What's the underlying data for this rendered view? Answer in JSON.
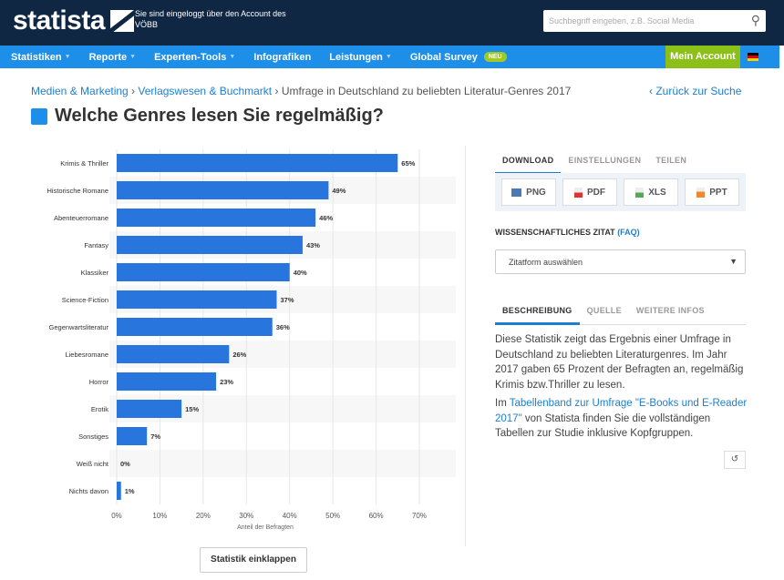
{
  "header": {
    "logo": "statista",
    "login_text": "Sie sind eingeloggt über den Account des VÖBB",
    "search_placeholder": "Suchbegriff eingeben, z.B. Social Media"
  },
  "nav": {
    "items": [
      {
        "label": "Statistiken",
        "dropdown": true
      },
      {
        "label": "Reporte",
        "dropdown": true
      },
      {
        "label": "Experten-Tools",
        "dropdown": true
      },
      {
        "label": "Infografiken",
        "dropdown": false
      },
      {
        "label": "Leistungen",
        "dropdown": true
      },
      {
        "label": "Global Survey",
        "dropdown": false
      }
    ],
    "badge": "NEU",
    "account": "Mein Account"
  },
  "breadcrumb": {
    "items": [
      "Medien & Marketing",
      "Verlagswesen & Buchmarkt"
    ],
    "current": "Umfrage in Deutschland zu beliebten Literatur-Genres 2017",
    "back": "‹ Zurück zur Suche"
  },
  "page_title": "Welche Genres lesen Sie regelmäßig?",
  "chart_data": {
    "type": "bar",
    "orientation": "horizontal",
    "categories": [
      "Krimis & Thriller",
      "Historische Romane",
      "Abenteuerromane",
      "Fantasy",
      "Klassiker",
      "Science-Fiction",
      "Gegenwartsliteratur",
      "Liebesromane",
      "Horror",
      "Erotik",
      "Sonstiges",
      "Weiß nicht",
      "Nichts davon"
    ],
    "values": [
      65,
      49,
      46,
      43,
      40,
      37,
      36,
      26,
      23,
      15,
      7,
      0,
      1
    ],
    "data_labels": [
      "65%",
      "49%",
      "46%",
      "43%",
      "40%",
      "37%",
      "36%",
      "26%",
      "23%",
      "15%",
      "7%",
      "0%",
      "1%"
    ],
    "xlabel": "Anteil der Befragten",
    "xlim": [
      0,
      70
    ],
    "xticks": [
      "0%",
      "10%",
      "20%",
      "30%",
      "40%",
      "50%",
      "60%",
      "70%"
    ],
    "bar_color": "#2876dd",
    "grid": true
  },
  "collapse_button": "Statistik einklappen",
  "download": {
    "tabs": [
      "DOWNLOAD",
      "EINSTELLUNGEN",
      "TEILEN"
    ],
    "buttons": [
      "PNG",
      "PDF",
      "XLS",
      "PPT"
    ]
  },
  "citation": {
    "label": "WISSENSCHAFTLICHES ZITAT",
    "faq": "(FAQ)",
    "select": "Zitatform auswählen"
  },
  "info": {
    "tabs": [
      "BESCHREIBUNG",
      "QUELLE",
      "WEITERE INFOS"
    ],
    "text1": "Diese Statistik zeigt das Ergebnis einer Umfrage in Deutschland zu beliebten Literaturgenres. Im Jahr 2017 gaben 65 Prozent der Befragten an, regelmäßig Krimis bzw.Thriller zu lesen.",
    "text2_pre": "Im ",
    "text2_link": "Tabellenband zur Umfrage \"E-Books und E-Reader 2017\"",
    "text2_post": " von Statista finden Sie die vollständigen Tabellen zur Studie inklusive Kopfgruppen.",
    "reset": "↺"
  }
}
